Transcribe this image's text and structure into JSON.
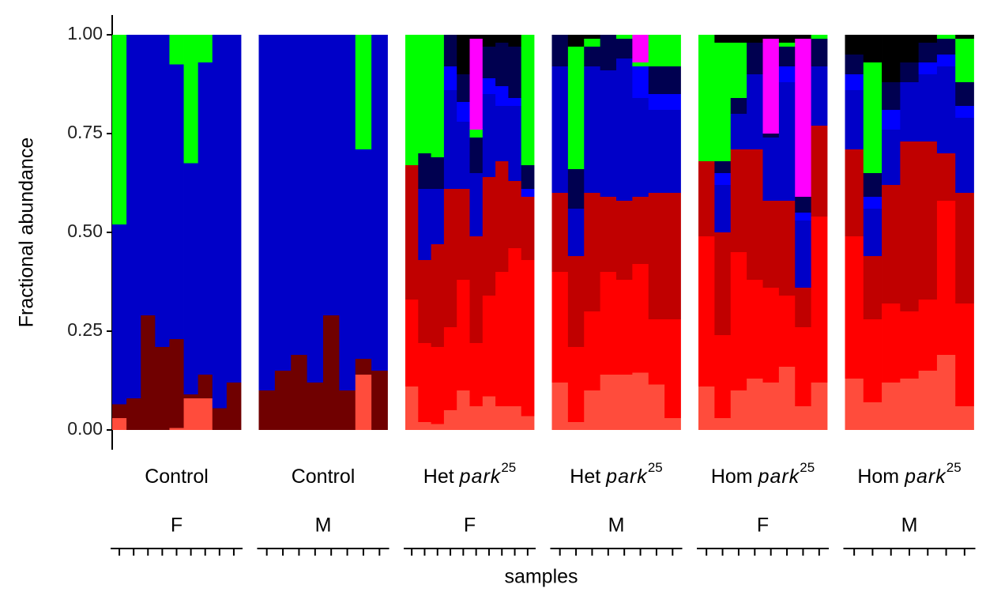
{
  "chart_data": {
    "type": "stacked_bar",
    "ylabel": "Fractional abundance",
    "xlabel": "samples",
    "ylim": [
      -0.05,
      1.05
    ],
    "yticks": [
      {
        "value": 0,
        "label": "0.00"
      },
      {
        "value": 0.25,
        "label": "0.25"
      },
      {
        "value": 0.5,
        "label": "0.50"
      },
      {
        "value": 0.75,
        "label": "0.75"
      },
      {
        "value": 1,
        "label": "1.00"
      }
    ],
    "panels": [
      {
        "genotype": {
          "prefix": "Control"
        },
        "sex": "F",
        "series": [
          {
            "color": "#ff4c3c",
            "values": [
              0.03,
              0,
              0,
              0,
              0.005,
              0.08,
              0.08,
              0,
              0
            ]
          },
          {
            "color": "#ff0000",
            "values": [
              0,
              0,
              0,
              0,
              0,
              0,
              0,
              0,
              0
            ]
          },
          {
            "color": "#c00000",
            "values": [
              0,
              0,
              0,
              0,
              0,
              0,
              0,
              0,
              0
            ]
          },
          {
            "color": "#700000",
            "values": [
              0.035,
              0.08,
              0.29,
              0.21,
              0.225,
              0.01,
              0.06,
              0.055,
              0.12
            ]
          },
          {
            "color": "#0000c8",
            "values": [
              0.455,
              0.92,
              0.71,
              0.79,
              0.695,
              0.585,
              0.79,
              0.945,
              0.88
            ]
          },
          {
            "color": "#0000ff",
            "values": [
              0,
              0,
              0,
              0,
              0,
              0,
              0,
              0,
              0
            ]
          },
          {
            "color": "#000050",
            "values": [
              0,
              0,
              0,
              0,
              0,
              0,
              0,
              0,
              0
            ]
          },
          {
            "color": "#00ff00",
            "values": [
              0.48,
              0,
              0,
              0,
              0.075,
              0.325,
              0.07,
              0,
              0
            ]
          },
          {
            "color": "#ff00ff",
            "values": [
              0,
              0,
              0,
              0,
              0,
              0,
              0,
              0,
              0
            ]
          },
          {
            "color": "#000000",
            "values": [
              0,
              0,
              0,
              0,
              0,
              0,
              0,
              0,
              0
            ]
          }
        ]
      },
      {
        "genotype": {
          "prefix": "Control"
        },
        "sex": "M",
        "series": [
          {
            "color": "#ff4c3c",
            "values": [
              0,
              0,
              0,
              0,
              0,
              0,
              0.14,
              0
            ]
          },
          {
            "color": "#ff0000",
            "values": [
              0,
              0,
              0,
              0,
              0,
              0,
              0,
              0
            ]
          },
          {
            "color": "#c00000",
            "values": [
              0,
              0,
              0,
              0,
              0,
              0,
              0,
              0
            ]
          },
          {
            "color": "#700000",
            "values": [
              0.1,
              0.15,
              0.19,
              0.12,
              0.29,
              0.1,
              0.04,
              0.15
            ]
          },
          {
            "color": "#0000c8",
            "values": [
              0.9,
              0.85,
              0.81,
              0.88,
              0.71,
              0.9,
              0.53,
              0.85
            ]
          },
          {
            "color": "#0000ff",
            "values": [
              0,
              0,
              0,
              0,
              0,
              0,
              0,
              0
            ]
          },
          {
            "color": "#000050",
            "values": [
              0,
              0,
              0,
              0,
              0,
              0,
              0,
              0
            ]
          },
          {
            "color": "#00ff00",
            "values": [
              0,
              0,
              0,
              0,
              0,
              0,
              0.29,
              0
            ]
          },
          {
            "color": "#ff00ff",
            "values": [
              0,
              0,
              0,
              0,
              0,
              0,
              0,
              0
            ]
          },
          {
            "color": "#000000",
            "values": [
              0,
              0,
              0,
              0,
              0,
              0,
              0,
              0
            ]
          }
        ]
      },
      {
        "genotype": {
          "prefix": "Het",
          "allele": "park",
          "sup": "25"
        },
        "sex": "F",
        "series": [
          {
            "color": "#ff4c3c",
            "values": [
              0.11,
              0.02,
              0.015,
              0.05,
              0.1,
              0.06,
              0.085,
              0.06,
              0.06,
              0.035
            ]
          },
          {
            "color": "#ff0000",
            "values": [
              0.22,
              0.2,
              0.195,
              0.21,
              0.28,
              0.16,
              0.255,
              0.34,
              0.4,
              0.395
            ]
          },
          {
            "color": "#c00000",
            "values": [
              0.34,
              0.21,
              0.26,
              0.35,
              0.23,
              0.27,
              0.3,
              0.28,
              0.17,
              0.16
            ]
          },
          {
            "color": "#700000",
            "values": [
              0,
              0,
              0,
              0,
              0,
              0,
              0,
              0,
              0,
              0
            ]
          },
          {
            "color": "#0000c8",
            "values": [
              0,
              0.18,
              0.14,
              0.25,
              0.17,
              0.16,
              0.21,
              0.14,
              0.19,
              0
            ]
          },
          {
            "color": "#0000ff",
            "values": [
              0,
              0,
              0,
              0.06,
              0.05,
              0,
              0.04,
              0.05,
              0.02,
              0.02
            ]
          },
          {
            "color": "#000050",
            "values": [
              0,
              0.09,
              0.08,
              0.08,
              0.07,
              0.09,
              0.08,
              0.11,
              0.13,
              0.06
            ]
          },
          {
            "color": "#00ff00",
            "values": [
              0.33,
              0.3,
              0.31,
              0,
              0,
              0.02,
              0,
              0,
              0,
              0.33
            ]
          },
          {
            "color": "#ff00ff",
            "values": [
              0,
              0,
              0,
              0,
              0,
              0.23,
              0,
              0,
              0,
              0
            ]
          },
          {
            "color": "#000000",
            "values": [
              0,
              0,
              0,
              0,
              0.1,
              0.01,
              0.03,
              0.02,
              0.03,
              0
            ]
          }
        ]
      },
      {
        "genotype": {
          "prefix": "Het",
          "allele": "park",
          "sup": "25"
        },
        "sex": "M",
        "series": [
          {
            "color": "#ff4c3c",
            "values": [
              0.12,
              0.02,
              0.1,
              0.14,
              0.14,
              0.145,
              0.115,
              0.03
            ]
          },
          {
            "color": "#ff0000",
            "values": [
              0.28,
              0.19,
              0.2,
              0.26,
              0.24,
              0.275,
              0.165,
              0.25
            ]
          },
          {
            "color": "#c00000",
            "values": [
              0.2,
              0.23,
              0.3,
              0.19,
              0.2,
              0.17,
              0.32,
              0.32
            ]
          },
          {
            "color": "#700000",
            "values": [
              0,
              0,
              0,
              0,
              0,
              0,
              0,
              0
            ]
          },
          {
            "color": "#0000c8",
            "values": [
              0.32,
              0.12,
              0.32,
              0.32,
              0.36,
              0.25,
              0.21,
              0.21
            ]
          },
          {
            "color": "#0000ff",
            "values": [
              0,
              0,
              0,
              0,
              0,
              0.08,
              0.04,
              0.04
            ]
          },
          {
            "color": "#000050",
            "values": [
              0.08,
              0.1,
              0.05,
              0.09,
              0.05,
              0,
              0.07,
              0.07
            ]
          },
          {
            "color": "#00ff00",
            "values": [
              0,
              0.31,
              0.02,
              0,
              0.01,
              0.01,
              0.08,
              0.08
            ]
          },
          {
            "color": "#ff00ff",
            "values": [
              0,
              0,
              0,
              0,
              0,
              0.07,
              0,
              0
            ]
          },
          {
            "color": "#000000",
            "values": [
              0,
              0.03,
              0.01,
              0,
              0,
              0,
              0,
              0
            ]
          }
        ]
      },
      {
        "genotype": {
          "prefix": "Hom",
          "allele": "park",
          "sup": "25"
        },
        "sex": "F",
        "series": [
          {
            "color": "#ff4c3c",
            "values": [
              0.11,
              0.03,
              0.1,
              0.13,
              0.12,
              0.16,
              0.06,
              0.12
            ]
          },
          {
            "color": "#ff0000",
            "values": [
              0.38,
              0.21,
              0.35,
              0.25,
              0.24,
              0.18,
              0.2,
              0.42
            ]
          },
          {
            "color": "#c00000",
            "values": [
              0.19,
              0.26,
              0.26,
              0.33,
              0.22,
              0.24,
              0.1,
              0.23
            ]
          },
          {
            "color": "#700000",
            "values": [
              0,
              0,
              0,
              0,
              0,
              0,
              0,
              0
            ]
          },
          {
            "color": "#0000c8",
            "values": [
              0,
              0.12,
              0.09,
              0.19,
              0.16,
              0.3,
              0.17,
              0.15
            ]
          },
          {
            "color": "#0000ff",
            "values": [
              0,
              0.03,
              0,
              0,
              0,
              0.04,
              0.02,
              0
            ]
          },
          {
            "color": "#000050",
            "values": [
              0,
              0.03,
              0.04,
              0.08,
              0.01,
              0.05,
              0.04,
              0.07
            ]
          },
          {
            "color": "#00ff00",
            "values": [
              0.32,
              0.3,
              0.14,
              0,
              0,
              0.01,
              0,
              0.01
            ]
          },
          {
            "color": "#ff00ff",
            "values": [
              0,
              0,
              0,
              0,
              0.24,
              0,
              0.4,
              0
            ]
          },
          {
            "color": "#000000",
            "values": [
              0,
              0.02,
              0.02,
              0.02,
              0.01,
              0.02,
              0.01,
              0
            ]
          }
        ]
      },
      {
        "genotype": {
          "prefix": "Hom",
          "allele": "park",
          "sup": "25"
        },
        "sex": "M",
        "series": [
          {
            "color": "#ff4c3c",
            "values": [
              0.13,
              0.07,
              0.12,
              0.13,
              0.15,
              0.19,
              0.06
            ]
          },
          {
            "color": "#ff0000",
            "values": [
              0.36,
              0.21,
              0.2,
              0.17,
              0.18,
              0.39,
              0.26
            ]
          },
          {
            "color": "#c00000",
            "values": [
              0.22,
              0.16,
              0.3,
              0.43,
              0.4,
              0.12,
              0.28
            ]
          },
          {
            "color": "#700000",
            "values": [
              0,
              0,
              0,
              0,
              0,
              0,
              0
            ]
          },
          {
            "color": "#0000c8",
            "values": [
              0.15,
              0.12,
              0.14,
              0.15,
              0.17,
              0.22,
              0.19
            ]
          },
          {
            "color": "#0000ff",
            "values": [
              0.04,
              0.03,
              0.05,
              0,
              0.03,
              0.03,
              0.03
            ]
          },
          {
            "color": "#000050",
            "values": [
              0.05,
              0.06,
              0.07,
              0.05,
              0.05,
              0.04,
              0.06
            ]
          },
          {
            "color": "#00ff00",
            "values": [
              0,
              0.28,
              0,
              0,
              0,
              0.01,
              0.11
            ]
          },
          {
            "color": "#ff00ff",
            "values": [
              0,
              0,
              0,
              0,
              0,
              0,
              0
            ]
          },
          {
            "color": "#000000",
            "values": [
              0.05,
              0.07,
              0.12,
              0.07,
              0.02,
              0,
              0.01
            ]
          }
        ]
      }
    ]
  }
}
